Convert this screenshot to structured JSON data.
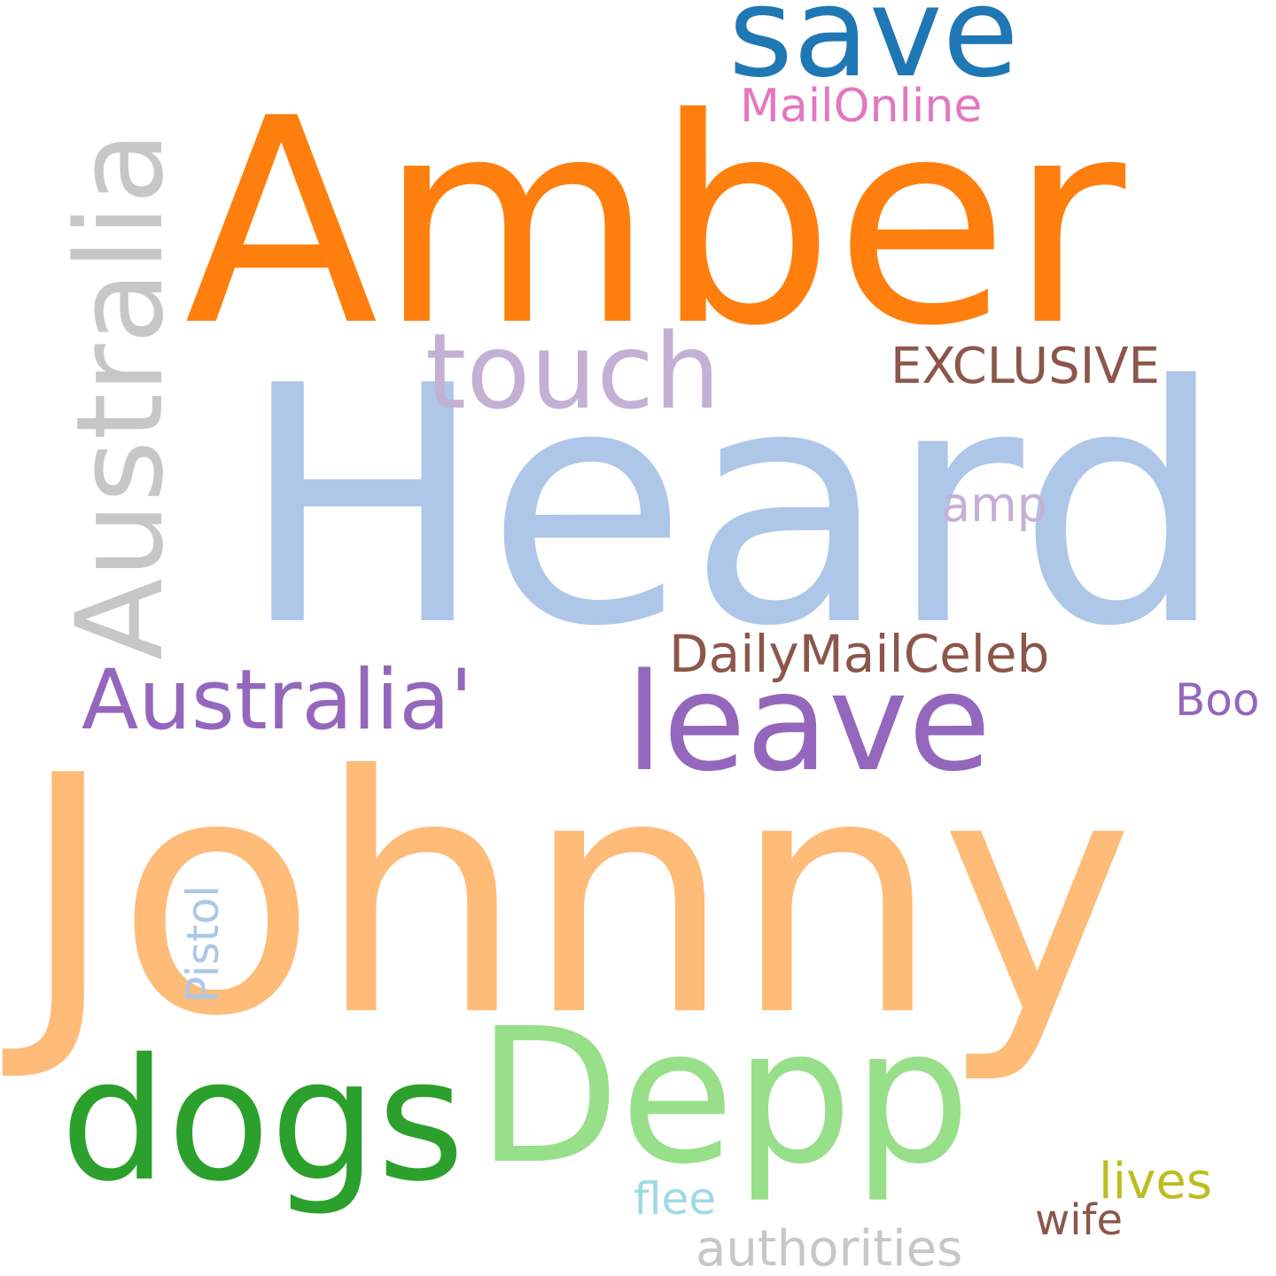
{
  "words": [
    {
      "text": "Johnny",
      "color": "#ffbb78"
    },
    {
      "text": "Heard",
      "color": "#aec7e8"
    },
    {
      "text": "Amber",
      "color": "#ff7f0e"
    },
    {
      "text": "Depp",
      "color": "#98df8a"
    },
    {
      "text": "Australia",
      "color": "#c7c7c7"
    },
    {
      "text": "dogs",
      "color": "#2ca02c"
    },
    {
      "text": "leave",
      "color": "#9467bd"
    },
    {
      "text": "save",
      "color": "#1f77b4"
    },
    {
      "text": "touch",
      "color": "#c5b0d5"
    },
    {
      "text": "Australia'",
      "color": "#9467bd"
    },
    {
      "text": "DailyMailCeleb",
      "color": "#8c564b"
    },
    {
      "text": "EXCLUSIVE",
      "color": "#8c564b"
    },
    {
      "text": "MailOnline",
      "color": "#e377c2"
    },
    {
      "text": "amp",
      "color": "#c5b0d5"
    },
    {
      "text": "Boo",
      "color": "#9467bd"
    },
    {
      "text": "Pistol",
      "color": "#aec7e8"
    },
    {
      "text": "lives",
      "color": "#bcbd22"
    },
    {
      "text": "flee",
      "color": "#9edae5"
    },
    {
      "text": "wife",
      "color": "#8c564b"
    },
    {
      "text": "authorities",
      "color": "#c7c7c7"
    }
  ]
}
